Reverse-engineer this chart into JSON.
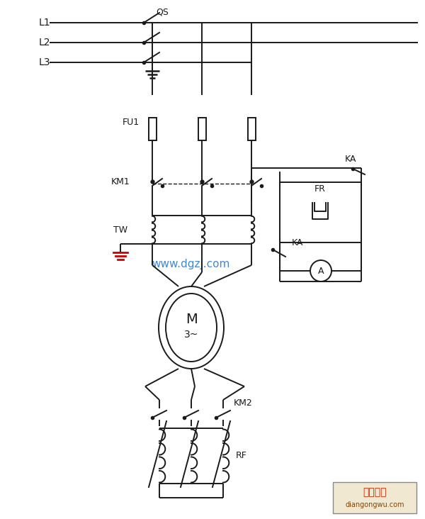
{
  "bg_color": "#ffffff",
  "line_color": "#1a1a1a",
  "watermark_color": "#4488cc",
  "watermark_text": "www.dgzj.com",
  "label_QS": "QS",
  "label_L1": "L1",
  "label_L2": "L2",
  "label_L3": "L3",
  "label_FU1": "FU1",
  "label_KM1": "KM1",
  "label_KA_top": "KA",
  "label_FR": "FR",
  "label_KA_bot": "KA",
  "label_KM2": "KM2",
  "label_RF": "RF",
  "label_TW": "TW",
  "label_M": "M",
  "label_M3": "3~",
  "label_A": "A",
  "brand_text": "电工之屋",
  "brand_sub": "diangongwu.com",
  "red_color": "#cc0000"
}
